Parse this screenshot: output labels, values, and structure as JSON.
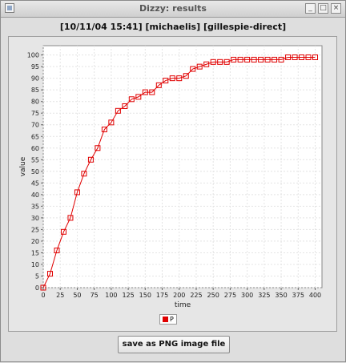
{
  "window": {
    "title": "Dizzy: results"
  },
  "header": {
    "text": "[10/11/04 15:41] [michaelis] [gillespie-direct]"
  },
  "buttons": {
    "save_label": "save as PNG image file"
  },
  "colors": {
    "series": "#e00000",
    "plot_bg": "#ffffff",
    "grid": "#e4e4e4"
  },
  "chart_data": {
    "type": "line",
    "xlabel": "time",
    "ylabel": "value",
    "xlim": [
      0,
      410
    ],
    "ylim": [
      0,
      104
    ],
    "xticks": [
      0,
      25,
      50,
      75,
      100,
      125,
      150,
      175,
      200,
      225,
      250,
      275,
      300,
      325,
      350,
      375,
      400
    ],
    "yticks": [
      0,
      5,
      10,
      15,
      20,
      25,
      30,
      35,
      40,
      45,
      50,
      55,
      60,
      65,
      70,
      75,
      80,
      85,
      90,
      95,
      100
    ],
    "legend_position": "bottom",
    "series": [
      {
        "name": "P",
        "marker": "square",
        "x": [
          0,
          10,
          20,
          30,
          40,
          50,
          60,
          70,
          80,
          90,
          100,
          110,
          120,
          130,
          140,
          150,
          160,
          170,
          180,
          190,
          200,
          210,
          220,
          230,
          240,
          250,
          260,
          270,
          280,
          290,
          300,
          310,
          320,
          330,
          340,
          350,
          360,
          370,
          380,
          390,
          400
        ],
        "y": [
          0,
          6,
          16,
          24,
          30,
          41,
          49,
          55,
          60,
          68,
          71,
          76,
          78,
          81,
          82,
          84,
          84,
          87,
          89,
          90,
          90,
          91,
          94,
          95,
          96,
          97,
          97,
          97,
          98,
          98,
          98,
          98,
          98,
          98,
          98,
          98,
          99,
          99,
          99,
          99,
          99
        ]
      }
    ]
  }
}
